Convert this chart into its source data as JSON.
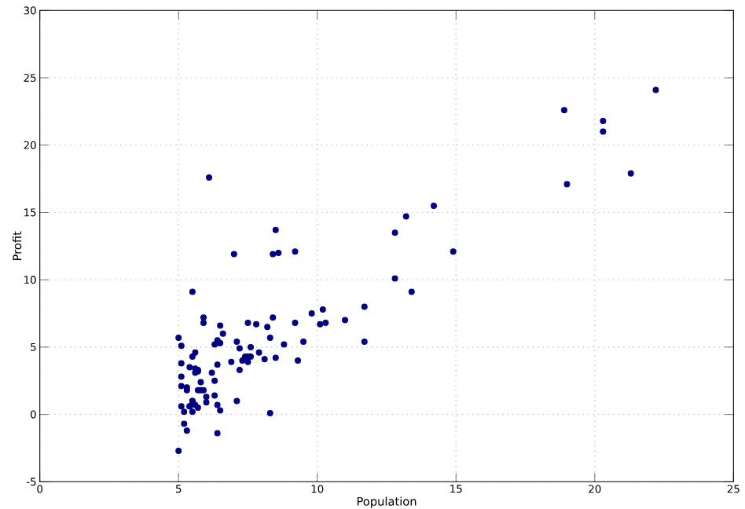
{
  "chart_data": {
    "type": "scatter",
    "xlabel": "Population",
    "ylabel": "Profit",
    "x": [
      6.1,
      5.5,
      8.5,
      7.0,
      5.9,
      8.4,
      7.5,
      8.6,
      6.5,
      5.1,
      5.7,
      14.2,
      5.7,
      8.4,
      5.6,
      5.4,
      6.4,
      5.1,
      6.4,
      7.1,
      6.2,
      20.3,
      5.5,
      6.3,
      5.6,
      18.9,
      12.8,
      11.0,
      13.2,
      22.2,
      5.3,
      6.6,
      9.2,
      5.9,
      8.2,
      7.9,
      8.1,
      5.6,
      12.8,
      6.4,
      5.4,
      6.9,
      11.7,
      5.8,
      7.8,
      7.1,
      5.1,
      5.8,
      11.7,
      5.5,
      7.5,
      5.3,
      7.4,
      7.6,
      6.3,
      6.4,
      6.3,
      5.6,
      9.3,
      9.5,
      8.8,
      5.2,
      21.3,
      14.9,
      19.0,
      7.2,
      8.3,
      10.2,
      5.5,
      20.3,
      10.1,
      7.3,
      6.0,
      7.2,
      5.0,
      6.5,
      7.5,
      5.0,
      10.3,
      5.1,
      5.7,
      5.2,
      6.4,
      9.8,
      6.5,
      8.5,
      9.2,
      6.0,
      5.5,
      5.1,
      5.7,
      7.6,
      5.9,
      5.3,
      8.3,
      13.4,
      5.4
    ],
    "values": [
      17.6,
      9.1,
      13.7,
      11.9,
      6.8,
      11.9,
      4.3,
      12.0,
      6.6,
      3.8,
      3.3,
      15.5,
      3.2,
      7.2,
      0.7,
      3.5,
      5.3,
      0.6,
      3.7,
      5.4,
      3.1,
      21.8,
      4.3,
      5.2,
      3.1,
      22.6,
      13.5,
      7.0,
      14.7,
      24.1,
      -1.2,
      6.0,
      12.1,
      1.8,
      6.5,
      4.6,
      4.1,
      3.4,
      10.1,
      5.5,
      0.6,
      3.9,
      5.4,
      2.4,
      6.7,
      1.0,
      5.1,
      1.8,
      8.0,
      1.0,
      6.8,
      1.8,
      4.3,
      5.0,
      1.4,
      -1.4,
      2.5,
      4.6,
      4.0,
      5.4,
      5.2,
      -0.7,
      17.9,
      12.1,
      17.1,
      4.9,
      5.7,
      7.8,
      1.0,
      21.0,
      6.7,
      4.0,
      1.3,
      3.3,
      -2.7,
      0.3,
      3.9,
      5.7,
      6.8,
      2.1,
      0.5,
      0.2,
      0.7,
      7.5,
      5.3,
      4.2,
      6.8,
      0.9,
      0.2,
      2.8,
      1.8,
      4.3,
      7.2,
      2.0,
      0.1,
      9.1,
      0.6
    ],
    "color": "#000080",
    "marker": "circle",
    "xlim": [
      0,
      25
    ],
    "xticks": [
      0,
      5,
      10,
      15,
      20,
      25
    ],
    "ylim": [
      -5,
      30
    ],
    "yticks": [
      -5,
      0,
      5,
      10,
      15,
      20,
      25,
      30
    ],
    "grid": true
  }
}
